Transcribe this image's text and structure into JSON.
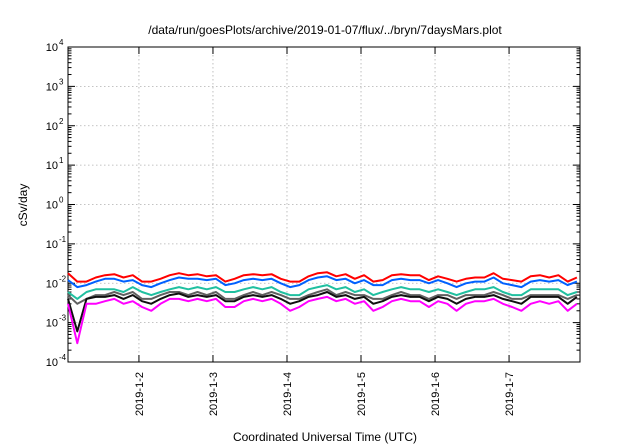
{
  "chart_data": {
    "type": "line",
    "title": "/data/run/goesPlots/archive/2019-01-07/flux/../bryn/7daysMars.plot",
    "xlabel": "Coordinated Universal Time (UTC)",
    "ylabel": "cSv/day",
    "y_scale": "log",
    "ylim": [
      0.0001,
      10000
    ],
    "y_ticks": [
      {
        "base": "10",
        "exp": "-4",
        "value": 0.0001
      },
      {
        "base": "10",
        "exp": "-3",
        "value": 0.001
      },
      {
        "base": "10",
        "exp": "-2",
        "value": 0.01
      },
      {
        "base": "10",
        "exp": "-1",
        "value": 0.1
      },
      {
        "base": "10",
        "exp": "0",
        "value": 1
      },
      {
        "base": "10",
        "exp": "1",
        "value": 10
      },
      {
        "base": "10",
        "exp": "2",
        "value": 100
      },
      {
        "base": "10",
        "exp": "3",
        "value": 1000
      },
      {
        "base": "10",
        "exp": "4",
        "value": 10000
      }
    ],
    "xlim": [
      "2019-01-01T01:00",
      "2019-01-07T23:00"
    ],
    "x_ticks": [
      "2019-1-2",
      "2019-1-3",
      "2019-1-4",
      "2019-1-5",
      "2019-1-6",
      "2019-1-7"
    ],
    "grid": true,
    "x_hours": [
      1,
      4,
      7,
      10,
      13,
      16,
      19,
      22,
      25,
      28,
      31,
      34,
      37,
      40,
      43,
      46,
      49,
      52,
      55,
      58,
      61,
      64,
      67,
      70,
      73,
      76,
      79,
      82,
      85,
      88,
      91,
      94,
      97,
      100,
      103,
      106,
      109,
      112,
      115,
      118,
      121,
      124,
      127,
      130,
      133,
      136,
      139,
      142,
      145,
      148,
      151,
      154,
      157,
      160,
      163,
      166
    ],
    "series": [
      {
        "color": "#ff0000",
        "values": [
          0.018,
          0.011,
          0.011,
          0.014,
          0.016,
          0.017,
          0.014,
          0.016,
          0.011,
          0.011,
          0.013,
          0.016,
          0.018,
          0.016,
          0.017,
          0.015,
          0.016,
          0.011,
          0.013,
          0.016,
          0.017,
          0.016,
          0.017,
          0.013,
          0.011,
          0.011,
          0.015,
          0.018,
          0.019,
          0.015,
          0.017,
          0.013,
          0.016,
          0.011,
          0.012,
          0.016,
          0.017,
          0.016,
          0.016,
          0.012,
          0.015,
          0.013,
          0.011,
          0.013,
          0.014,
          0.014,
          0.018,
          0.013,
          0.012,
          0.011,
          0.015,
          0.016,
          0.014,
          0.016,
          0.011,
          0.014
        ]
      },
      {
        "color": "#0060ff",
        "values": [
          0.012,
          0.008,
          0.009,
          0.011,
          0.013,
          0.013,
          0.011,
          0.012,
          0.009,
          0.008,
          0.01,
          0.012,
          0.014,
          0.013,
          0.013,
          0.012,
          0.013,
          0.009,
          0.01,
          0.012,
          0.013,
          0.012,
          0.013,
          0.01,
          0.008,
          0.009,
          0.012,
          0.014,
          0.015,
          0.012,
          0.013,
          0.01,
          0.012,
          0.009,
          0.009,
          0.012,
          0.013,
          0.012,
          0.012,
          0.01,
          0.012,
          0.01,
          0.008,
          0.01,
          0.011,
          0.011,
          0.014,
          0.01,
          0.009,
          0.008,
          0.011,
          0.012,
          0.011,
          0.012,
          0.009,
          0.011
        ]
      },
      {
        "color": "#20c0a0",
        "values": [
          0.006,
          0.004,
          0.006,
          0.007,
          0.007,
          0.007,
          0.006,
          0.008,
          0.006,
          0.005,
          0.006,
          0.007,
          0.008,
          0.007,
          0.008,
          0.007,
          0.008,
          0.006,
          0.006,
          0.007,
          0.008,
          0.007,
          0.008,
          0.006,
          0.005,
          0.005,
          0.007,
          0.008,
          0.009,
          0.007,
          0.008,
          0.006,
          0.007,
          0.005,
          0.006,
          0.007,
          0.008,
          0.007,
          0.007,
          0.006,
          0.007,
          0.006,
          0.005,
          0.006,
          0.007,
          0.007,
          0.008,
          0.006,
          0.005,
          0.005,
          0.007,
          0.007,
          0.007,
          0.007,
          0.005,
          0.006
        ]
      },
      {
        "color": "#606060",
        "values": [
          0.005,
          0.003,
          0.004,
          0.005,
          0.005,
          0.006,
          0.005,
          0.006,
          0.004,
          0.004,
          0.005,
          0.006,
          0.006,
          0.005,
          0.006,
          0.005,
          0.006,
          0.004,
          0.004,
          0.005,
          0.006,
          0.005,
          0.006,
          0.005,
          0.004,
          0.004,
          0.005,
          0.006,
          0.007,
          0.005,
          0.006,
          0.005,
          0.005,
          0.004,
          0.004,
          0.005,
          0.006,
          0.005,
          0.005,
          0.004,
          0.005,
          0.005,
          0.004,
          0.005,
          0.005,
          0.005,
          0.006,
          0.005,
          0.004,
          0.004,
          0.005,
          0.005,
          0.005,
          0.005,
          0.004,
          0.005
        ]
      },
      {
        "color": "#101010",
        "values": [
          0.004,
          0.0006,
          0.004,
          0.0045,
          0.0045,
          0.005,
          0.004,
          0.005,
          0.0035,
          0.003,
          0.004,
          0.005,
          0.0055,
          0.0045,
          0.005,
          0.0045,
          0.005,
          0.0035,
          0.0035,
          0.0045,
          0.005,
          0.0045,
          0.005,
          0.004,
          0.003,
          0.0035,
          0.0045,
          0.005,
          0.006,
          0.0045,
          0.005,
          0.004,
          0.0045,
          0.003,
          0.0035,
          0.0045,
          0.005,
          0.0045,
          0.0045,
          0.0035,
          0.0045,
          0.004,
          0.003,
          0.004,
          0.0045,
          0.0045,
          0.005,
          0.004,
          0.0035,
          0.003,
          0.0045,
          0.0045,
          0.0045,
          0.0045,
          0.003,
          0.0045
        ]
      },
      {
        "color": "#ff00ff",
        "values": [
          0.003,
          0.0003,
          0.003,
          0.003,
          0.0035,
          0.004,
          0.003,
          0.0035,
          0.0025,
          0.002,
          0.003,
          0.004,
          0.004,
          0.0035,
          0.004,
          0.0035,
          0.004,
          0.0025,
          0.0025,
          0.0035,
          0.004,
          0.0035,
          0.004,
          0.003,
          0.002,
          0.0025,
          0.0035,
          0.004,
          0.0045,
          0.0035,
          0.004,
          0.003,
          0.0035,
          0.002,
          0.0025,
          0.0035,
          0.004,
          0.0035,
          0.0035,
          0.0025,
          0.0035,
          0.003,
          0.002,
          0.003,
          0.0035,
          0.0035,
          0.004,
          0.003,
          0.0025,
          0.002,
          0.003,
          0.0035,
          0.003,
          0.0035,
          0.002,
          0.003
        ]
      }
    ]
  }
}
